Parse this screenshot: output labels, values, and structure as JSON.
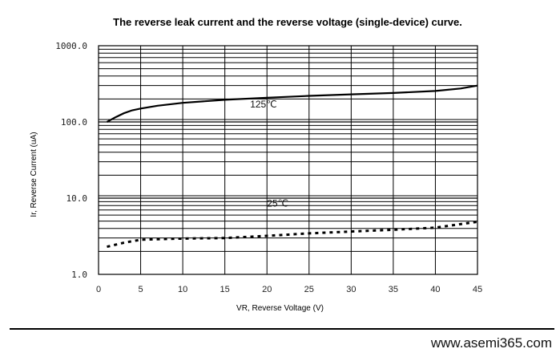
{
  "chart_data": {
    "type": "line",
    "title": "The reverse leak current and the reverse voltage (single-device) curve.",
    "xlabel": "VR, Reverse Voltage (V)",
    "ylabel": "Ir, Reverse Current (uA)",
    "xlim": [
      0,
      45
    ],
    "ylim": [
      1.0,
      1000.0
    ],
    "yscale": "log",
    "grid": true,
    "x_ticks": [
      "0",
      "5",
      "10",
      "15",
      "20",
      "25",
      "30",
      "35",
      "40",
      "45"
    ],
    "y_ticks": [
      "1.0",
      "10.0",
      "100.0",
      "1000.0"
    ],
    "series": [
      {
        "name": "125℃",
        "style": "solid",
        "color": "#000000",
        "x": [
          1,
          2,
          3,
          4,
          5,
          7,
          10,
          15,
          20,
          25,
          30,
          35,
          40,
          43,
          45
        ],
        "y": [
          100,
          115,
          130,
          142,
          150,
          163,
          178,
          195,
          208,
          220,
          230,
          240,
          255,
          275,
          300
        ]
      },
      {
        "name": "25℃",
        "style": "dashed",
        "color": "#000000",
        "x": [
          1,
          3,
          5,
          10,
          15,
          20,
          25,
          30,
          35,
          40,
          45
        ],
        "y": [
          2.3,
          2.6,
          2.85,
          2.95,
          3.0,
          3.2,
          3.45,
          3.65,
          3.85,
          4.1,
          4.9
        ]
      }
    ]
  },
  "footer": {
    "url": "www.asemi365.com"
  }
}
